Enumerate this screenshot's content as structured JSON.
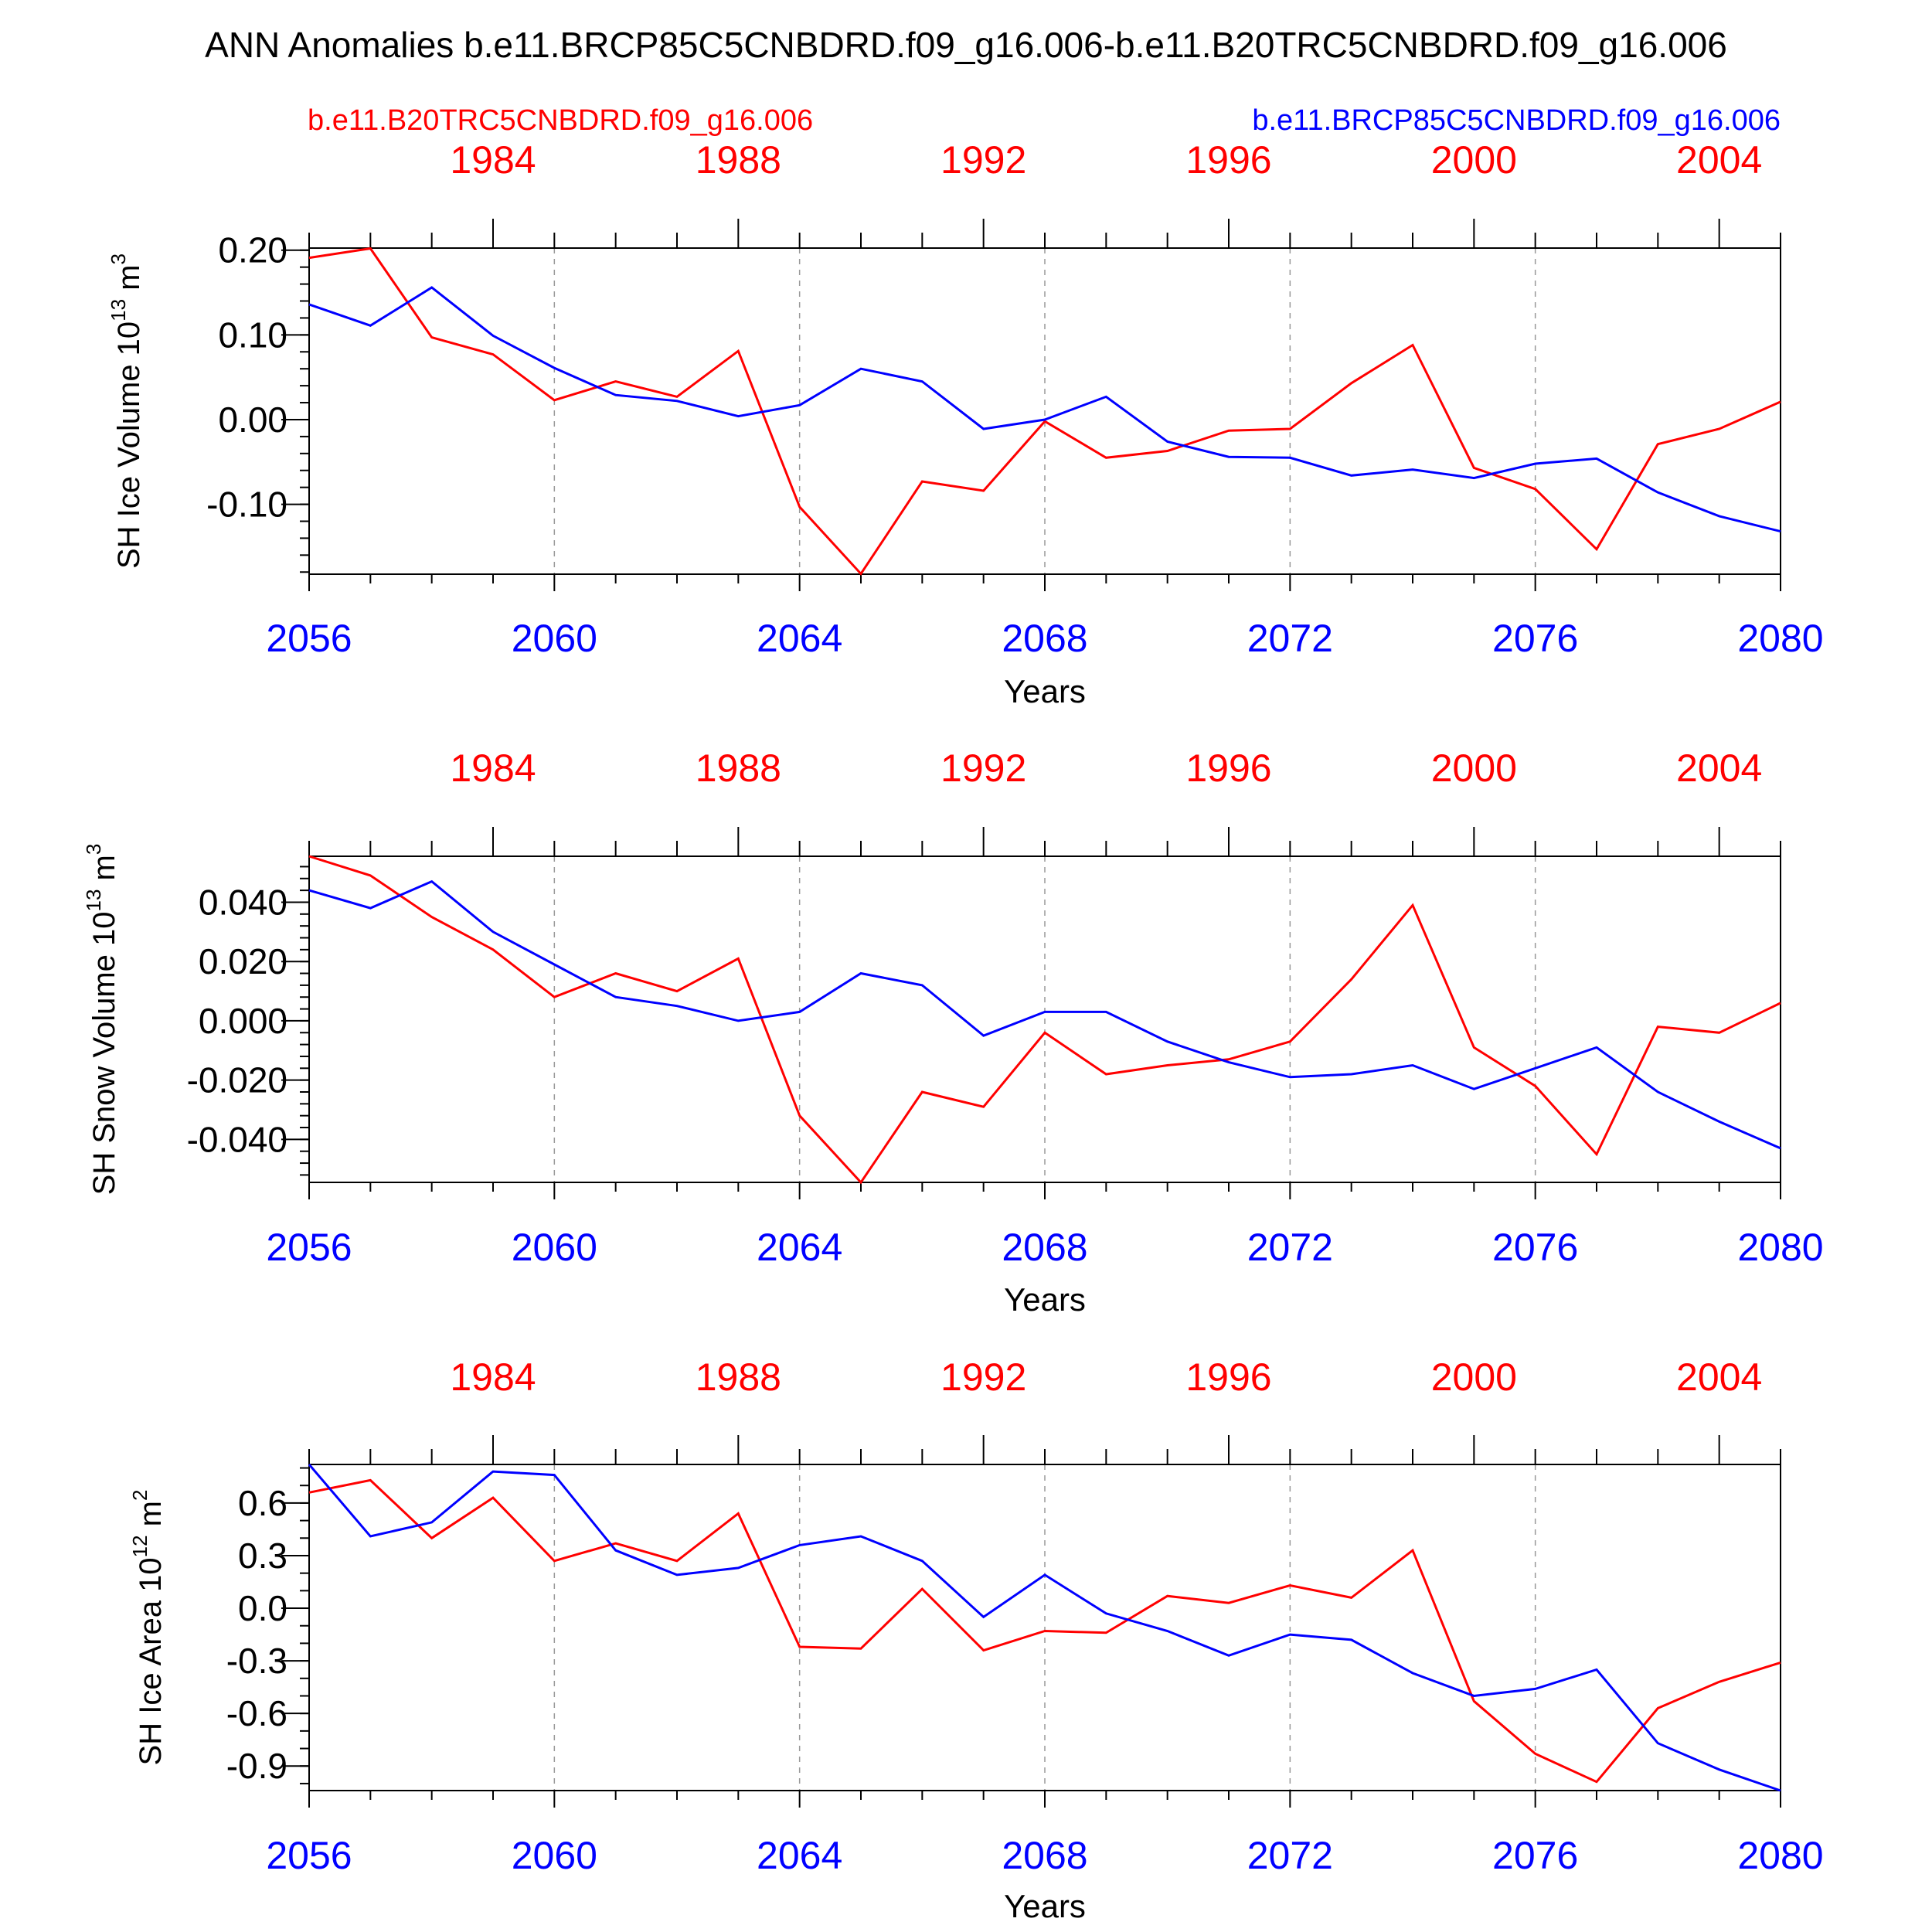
{
  "title": "ANN Anomalies b.e11.BRCP85C5CNBDRD.f09_g16.006-b.e11.B20TRC5CNBDRD.f09_g16.006",
  "legend": {
    "left_label": "b.e11.B20TRC5CNBDRD.f09_g16.006",
    "left_color": "#ff0000",
    "right_label": "b.e11.BRCP85C5CNBDRD.f09_g16.006",
    "right_color": "#0000ff"
  },
  "chart_data": [
    {
      "type": "line",
      "ylabel_prefix": "SH Ice Volume 10",
      "ylabel_exp": "13",
      "ylabel_unit": " m",
      "ylabel_unit_exp": "3",
      "xlabel": "Years",
      "ylim": [
        -0.1825,
        0.2025
      ],
      "yticks": [
        0.2,
        0.1,
        0.0,
        -0.1
      ],
      "yticklabels": [
        "0.20",
        "0.10",
        "0.00",
        "-0.10"
      ],
      "yminor": 0.02,
      "xlim": [
        2056,
        2080
      ],
      "xticks": [
        2056,
        2060,
        2064,
        2068,
        2072,
        2076,
        2080
      ],
      "xticklabels": [
        "2056",
        "2060",
        "2064",
        "2068",
        "2072",
        "2076",
        "2080"
      ],
      "top_xticks": [
        1984,
        1988,
        1992,
        1996,
        2000,
        2004
      ],
      "top_xticklabels": [
        "1984",
        "1988",
        "1992",
        "1996",
        "2000",
        "2004"
      ],
      "series": [
        {
          "name": "b.e11.B20TRC5CNBDRD.f09_g16.006",
          "color": "#ff0000",
          "x": [
            2056,
            2057,
            2058,
            2059,
            2060,
            2061,
            2062,
            2063,
            2064,
            2065,
            2066,
            2067,
            2068,
            2069,
            2070,
            2071,
            2072,
            2073,
            2074,
            2075,
            2076,
            2077,
            2078,
            2079,
            2080
          ],
          "values": [
            0.191,
            0.202,
            0.097,
            0.077,
            0.023,
            0.045,
            0.027,
            0.081,
            -0.103,
            -0.182,
            -0.073,
            -0.084,
            -0.002,
            -0.045,
            -0.037,
            -0.013,
            -0.011,
            0.043,
            0.088,
            -0.057,
            -0.082,
            -0.153,
            -0.029,
            -0.011,
            0.021
          ]
        },
        {
          "name": "b.e11.BRCP85C5CNBDRD.f09_g16.006",
          "color": "#0000ff",
          "x": [
            2056,
            2057,
            2058,
            2059,
            2060,
            2061,
            2062,
            2063,
            2064,
            2065,
            2066,
            2067,
            2068,
            2069,
            2070,
            2071,
            2072,
            2073,
            2074,
            2075,
            2076,
            2077,
            2078,
            2079,
            2080
          ],
          "values": [
            0.136,
            0.111,
            0.156,
            0.099,
            0.061,
            0.029,
            0.022,
            0.004,
            0.017,
            0.06,
            0.045,
            -0.011,
            0.0,
            0.027,
            -0.026,
            -0.044,
            -0.045,
            -0.066,
            -0.059,
            -0.069,
            -0.052,
            -0.046,
            -0.086,
            -0.114,
            -0.132
          ]
        }
      ]
    },
    {
      "type": "line",
      "ylabel_prefix": "SH Snow Volume 10",
      "ylabel_exp": "13",
      "ylabel_unit": " m",
      "ylabel_unit_exp": "3",
      "xlabel": "Years",
      "ylim": [
        -0.0545,
        0.0555
      ],
      "yticks": [
        0.04,
        0.02,
        0.0,
        -0.02,
        -0.04
      ],
      "yticklabels": [
        "0.040",
        "0.020",
        "0.000",
        "-0.020",
        "-0.040"
      ],
      "yminor": 0.004,
      "xlim": [
        2056,
        2080
      ],
      "xticks": [
        2056,
        2060,
        2064,
        2068,
        2072,
        2076,
        2080
      ],
      "xticklabels": [
        "2056",
        "2060",
        "2064",
        "2068",
        "2072",
        "2076",
        "2080"
      ],
      "top_xticks": [
        1984,
        1988,
        1992,
        1996,
        2000,
        2004
      ],
      "top_xticklabels": [
        "1984",
        "1988",
        "1992",
        "1996",
        "2000",
        "2004"
      ],
      "series": [
        {
          "name": "b.e11.B20TRC5CNBDRD.f09_g16.006",
          "color": "#ff0000",
          "x": [
            2056,
            2057,
            2058,
            2059,
            2060,
            2061,
            2062,
            2063,
            2064,
            2065,
            2066,
            2067,
            2068,
            2069,
            2070,
            2071,
            2072,
            2073,
            2074,
            2075,
            2076,
            2077,
            2078,
            2079,
            2080
          ],
          "values": [
            0.0555,
            0.049,
            0.035,
            0.024,
            0.008,
            0.016,
            0.01,
            0.021,
            -0.032,
            -0.0545,
            -0.024,
            -0.029,
            -0.004,
            -0.018,
            -0.015,
            -0.013,
            -0.007,
            0.014,
            0.039,
            -0.009,
            -0.022,
            -0.045,
            -0.002,
            -0.004,
            0.006
          ]
        },
        {
          "name": "b.e11.BRCP85C5CNBDRD.f09_g16.006",
          "color": "#0000ff",
          "x": [
            2056,
            2057,
            2058,
            2059,
            2060,
            2061,
            2062,
            2063,
            2064,
            2065,
            2066,
            2067,
            2068,
            2069,
            2070,
            2071,
            2072,
            2073,
            2074,
            2075,
            2076,
            2077,
            2078,
            2079,
            2080
          ],
          "values": [
            0.044,
            0.038,
            0.047,
            0.03,
            0.019,
            0.008,
            0.005,
            0.0,
            0.003,
            0.016,
            0.012,
            -0.005,
            0.003,
            0.003,
            -0.007,
            -0.014,
            -0.019,
            -0.018,
            -0.015,
            -0.023,
            -0.016,
            -0.009,
            -0.024,
            -0.034,
            -0.043
          ]
        }
      ]
    },
    {
      "type": "line",
      "ylabel_prefix": "SH Ice Area 10",
      "ylabel_exp": "12",
      "ylabel_unit": " m",
      "ylabel_unit_exp": "2",
      "xlabel": "Years",
      "ylim": [
        -1.04,
        0.82
      ],
      "yticks": [
        0.6,
        0.3,
        0.0,
        -0.3,
        -0.6,
        -0.9
      ],
      "yticklabels": [
        "0.6",
        "0.3",
        "0.0",
        "-0.3",
        "-0.6",
        "-0.9"
      ],
      "yminor": 0.1,
      "xlim": [
        2056,
        2080
      ],
      "xticks": [
        2056,
        2060,
        2064,
        2068,
        2072,
        2076,
        2080
      ],
      "xticklabels": [
        "2056",
        "2060",
        "2064",
        "2068",
        "2072",
        "2076",
        "2080"
      ],
      "top_xticks": [
        1984,
        1988,
        1992,
        1996,
        2000,
        2004
      ],
      "top_xticklabels": [
        "1984",
        "1988",
        "1992",
        "1996",
        "2000",
        "2004"
      ],
      "series": [
        {
          "name": "b.e11.B20TRC5CNBDRD.f09_g16.006",
          "color": "#ff0000",
          "x": [
            2056,
            2057,
            2058,
            2059,
            2060,
            2061,
            2062,
            2063,
            2064,
            2065,
            2066,
            2067,
            2068,
            2069,
            2070,
            2071,
            2072,
            2073,
            2074,
            2075,
            2076,
            2077,
            2078,
            2079,
            2080
          ],
          "values": [
            0.66,
            0.73,
            0.4,
            0.63,
            0.27,
            0.37,
            0.27,
            0.54,
            -0.22,
            -0.23,
            0.11,
            -0.24,
            -0.13,
            -0.14,
            0.07,
            0.03,
            0.13,
            0.06,
            0.33,
            -0.53,
            -0.83,
            -0.99,
            -0.57,
            -0.42,
            -0.31
          ]
        },
        {
          "name": "b.e11.BRCP85C5CNBDRD.f09_g16.006",
          "color": "#0000ff",
          "x": [
            2056,
            2057,
            2058,
            2059,
            2060,
            2061,
            2062,
            2063,
            2064,
            2065,
            2066,
            2067,
            2068,
            2069,
            2070,
            2071,
            2072,
            2073,
            2074,
            2075,
            2076,
            2077,
            2078,
            2079,
            2080
          ],
          "values": [
            0.82,
            0.41,
            0.49,
            0.78,
            0.76,
            0.33,
            0.19,
            0.23,
            0.36,
            0.41,
            0.27,
            -0.05,
            0.19,
            -0.03,
            -0.13,
            -0.27,
            -0.15,
            -0.18,
            -0.37,
            -0.5,
            -0.46,
            -0.35,
            -0.77,
            -0.92,
            -1.04
          ]
        }
      ]
    }
  ]
}
